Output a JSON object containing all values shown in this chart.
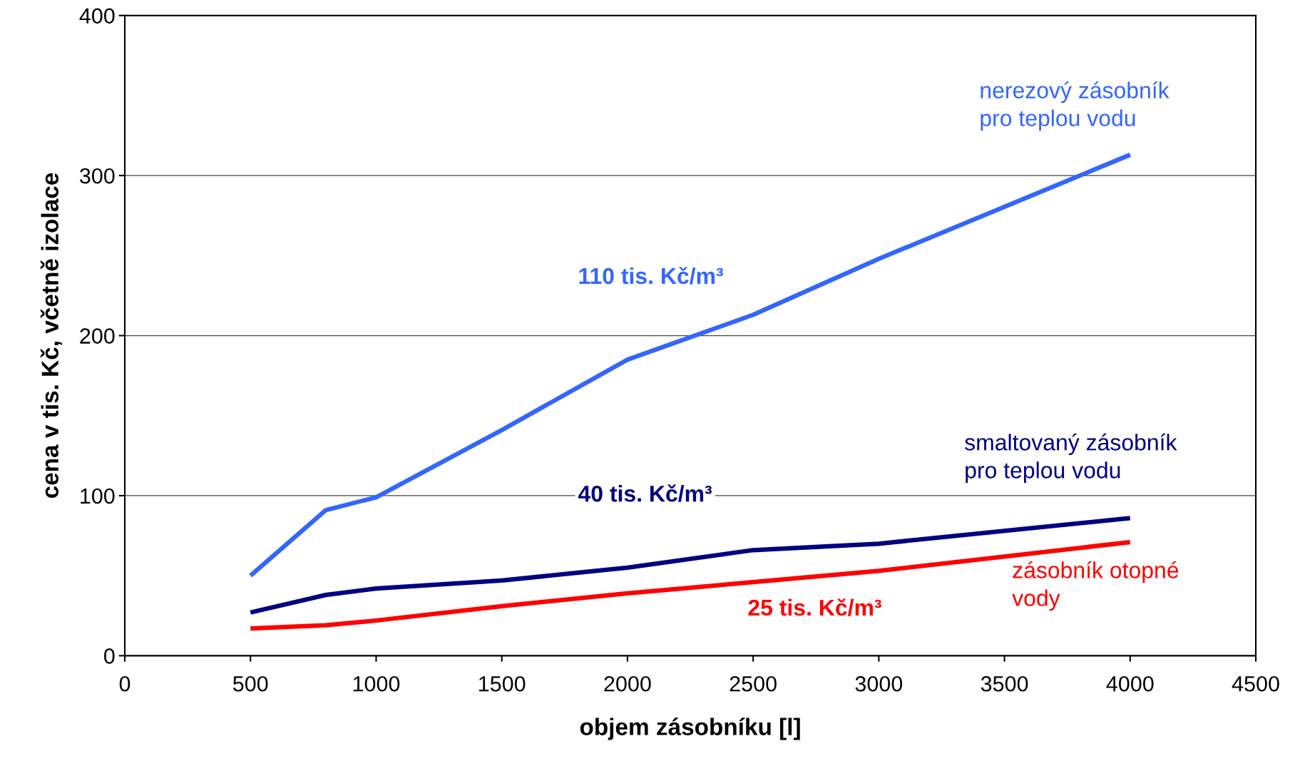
{
  "chart_data": {
    "type": "line",
    "xlabel": "objem zásobníku [l]",
    "ylabel": "cena v tis. Kč, včetně izolace",
    "xlim": [
      0,
      4500
    ],
    "xticks": [
      0,
      500,
      1000,
      1500,
      2000,
      2500,
      3000,
      3500,
      4000,
      4500
    ],
    "ylim": [
      0,
      400
    ],
    "yticks": [
      0,
      100,
      200,
      300,
      400
    ],
    "grid": "y",
    "legend": false,
    "marker": "none",
    "line_style": "solid",
    "x": [
      500,
      800,
      1000,
      1500,
      2000,
      2500,
      3000,
      4000
    ],
    "series": [
      {
        "name": "nerezový zásobník\npro teplou vodu",
        "color": "#3366ff",
        "values": [
          50,
          91,
          99,
          141,
          185,
          213,
          248,
          313
        ]
      },
      {
        "name": "smaltovaný zásobník\npro teplou vodu",
        "color": "#000080",
        "values": [
          27,
          38,
          42,
          47,
          55,
          66,
          70,
          86
        ]
      },
      {
        "name": "zásobník otopné\nvody",
        "color": "#ff0000",
        "values": [
          17,
          19,
          22,
          31,
          39,
          46,
          53,
          71
        ]
      }
    ],
    "annotations": [
      "110 tis. Kč/m³",
      "40 tis. Kč/m³",
      "25 tis. Kč/m³"
    ]
  }
}
